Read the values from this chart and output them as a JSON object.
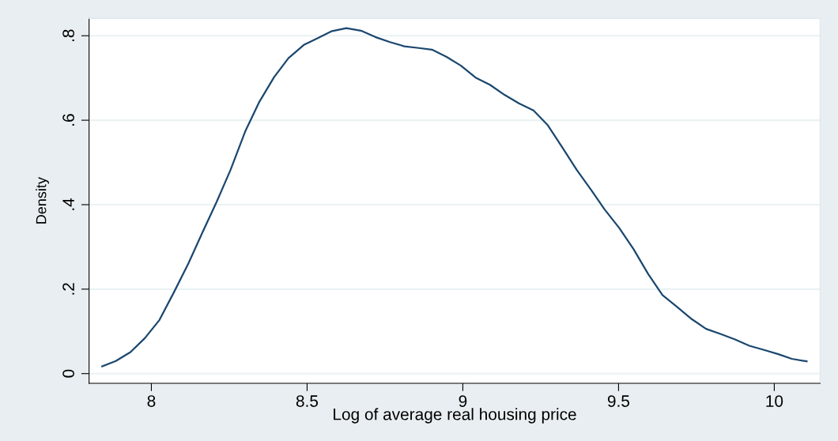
{
  "chart_data": {
    "type": "line",
    "xlabel": "Log of average real housing price",
    "ylabel": "Density",
    "x": [
      7.842,
      7.886,
      7.933,
      7.979,
      8.026,
      8.072,
      8.119,
      8.165,
      8.208,
      8.254,
      8.301,
      8.347,
      8.394,
      8.44,
      8.491,
      8.533,
      8.58,
      8.626,
      8.673,
      8.719,
      8.766,
      8.812,
      8.859,
      8.901,
      8.948,
      8.994,
      9.041,
      9.087,
      9.134,
      9.18,
      9.227,
      9.273,
      9.32,
      9.366,
      9.413,
      9.455,
      9.502,
      9.548,
      9.595,
      9.641,
      9.688,
      9.735,
      9.781,
      9.827,
      9.874,
      9.92,
      9.967,
      10.013,
      10.056,
      10.104
    ],
    "series": [
      {
        "color": "#1a476f",
        "values": [
          0.017,
          0.03,
          0.051,
          0.084,
          0.127,
          0.192,
          0.261,
          0.336,
          0.404,
          0.482,
          0.573,
          0.644,
          0.702,
          0.747,
          0.779,
          0.794,
          0.811,
          0.818,
          0.812,
          0.797,
          0.785,
          0.775,
          0.771,
          0.767,
          0.75,
          0.729,
          0.701,
          0.684,
          0.66,
          0.64,
          0.623,
          0.588,
          0.535,
          0.482,
          0.434,
          0.389,
          0.345,
          0.295,
          0.236,
          0.186,
          0.158,
          0.129,
          0.106,
          0.094,
          0.081,
          0.066,
          0.056,
          0.046,
          0.035,
          0.029
        ]
      }
    ],
    "xlim": [
      7.8,
      10.147
    ],
    "ylim": [
      -0.023,
      0.841
    ],
    "xticks": [
      8,
      8.5,
      9,
      9.5,
      10
    ],
    "yticks": [
      0,
      {
        "value": 0.2,
        "label": ".2"
      },
      {
        "value": 0.4,
        "label": ".4"
      },
      {
        "value": 0.6,
        "label": ".6"
      },
      {
        "value": 0.8,
        "label": ".8"
      }
    ],
    "grid": "y",
    "legend": false,
    "marker": "none",
    "line_style": "solid"
  }
}
